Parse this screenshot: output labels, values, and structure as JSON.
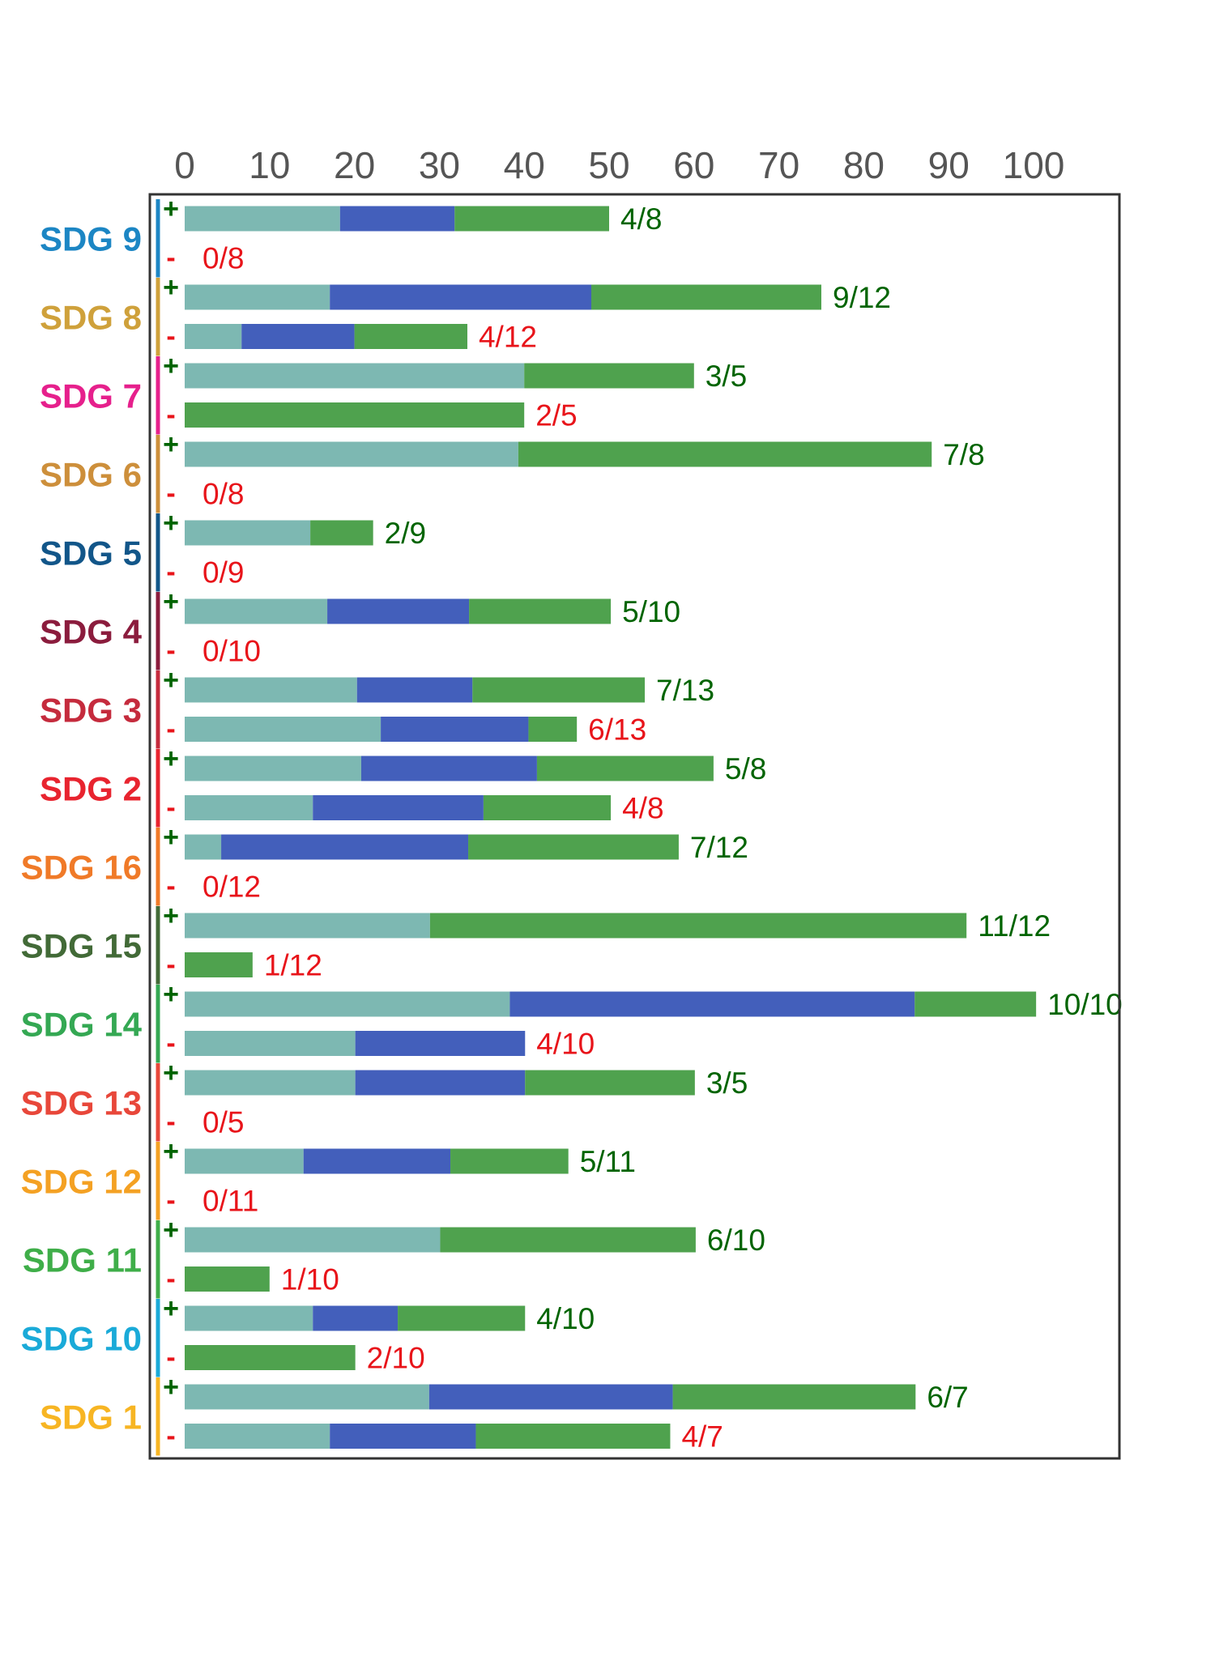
{
  "chart_data": {
    "type": "bar",
    "orientation": "horizontal",
    "stacked": true,
    "xlim": [
      0,
      110
    ],
    "xticks": [
      0,
      10,
      20,
      30,
      40,
      50,
      60,
      70,
      80,
      90,
      100
    ],
    "legend": "none",
    "grid": false,
    "segment_colors": [
      "#7db8b2",
      "#435fbb",
      "#4fa24e"
    ],
    "sign_colors": {
      "+": "#006400",
      "-": "#e8141a"
    },
    "groups": [
      {
        "label": "SDG 9",
        "color": "#1c86c4",
        "rows": [
          {
            "sign": "+",
            "segments": [
              18.3,
              13.5,
              18.2
            ],
            "ratio": "4/8"
          },
          {
            "sign": "-",
            "segments": [
              0,
              0,
              0
            ],
            "ratio": "0/8"
          }
        ]
      },
      {
        "label": "SDG 8",
        "color": "#cfa13b",
        "rows": [
          {
            "sign": "+",
            "segments": [
              17.1,
              30.8,
              27.1
            ],
            "ratio": "9/12"
          },
          {
            "sign": "-",
            "segments": [
              6.7,
              13.3,
              13.3
            ],
            "ratio": "4/12"
          }
        ]
      },
      {
        "label": "SDG 7",
        "color": "#e6208c",
        "rows": [
          {
            "sign": "+",
            "segments": [
              40,
              0,
              20
            ],
            "ratio": "3/5"
          },
          {
            "sign": "-",
            "segments": [
              0,
              0,
              40
            ],
            "ratio": "2/5"
          }
        ]
      },
      {
        "label": "SDG 6",
        "color": "#cd8f3b",
        "rows": [
          {
            "sign": "+",
            "segments": [
              39.3,
              0,
              48.7
            ],
            "ratio": "7/8"
          },
          {
            "sign": "-",
            "segments": [
              0,
              0,
              0
            ],
            "ratio": "0/8"
          }
        ]
      },
      {
        "label": "SDG 5",
        "color": "#125689",
        "rows": [
          {
            "sign": "+",
            "segments": [
              14.8,
              0,
              7.4
            ],
            "ratio": "2/9"
          },
          {
            "sign": "-",
            "segments": [
              0,
              0,
              0
            ],
            "ratio": "0/9"
          }
        ]
      },
      {
        "label": "SDG 4",
        "color": "#8b1c3d",
        "rows": [
          {
            "sign": "+",
            "segments": [
              16.8,
              16.7,
              16.7
            ],
            "ratio": "5/10"
          },
          {
            "sign": "-",
            "segments": [
              0,
              0,
              0
            ],
            "ratio": "0/10"
          }
        ]
      },
      {
        "label": "SDG 3",
        "color": "#c52b3d",
        "rows": [
          {
            "sign": "+",
            "segments": [
              20.3,
              13.6,
              20.3
            ],
            "ratio": "7/13"
          },
          {
            "sign": "-",
            "segments": [
              23.1,
              17.4,
              5.7
            ],
            "ratio": "6/13"
          }
        ]
      },
      {
        "label": "SDG 2",
        "color": "#e8242f",
        "rows": [
          {
            "sign": "+",
            "segments": [
              20.8,
              20.7,
              20.8
            ],
            "ratio": "5/8"
          },
          {
            "sign": "-",
            "segments": [
              15.1,
              20.1,
              15
            ],
            "ratio": "4/8"
          }
        ]
      },
      {
        "label": "SDG 16",
        "color": "#f07a28",
        "rows": [
          {
            "sign": "+",
            "segments": [
              4.3,
              29.1,
              24.8
            ],
            "ratio": "7/12"
          },
          {
            "sign": "-",
            "segments": [
              0,
              0,
              0
            ],
            "ratio": "0/12"
          }
        ]
      },
      {
        "label": "SDG 15",
        "color": "#426a37",
        "rows": [
          {
            "sign": "+",
            "segments": [
              28.9,
              0,
              63.2
            ],
            "ratio": "11/12"
          },
          {
            "sign": "-",
            "segments": [
              0,
              0,
              8
            ],
            "ratio": "1/12"
          }
        ]
      },
      {
        "label": "SDG 14",
        "color": "#34a853",
        "rows": [
          {
            "sign": "+",
            "segments": [
              38.3,
              47.7,
              14.3
            ],
            "ratio": "10/10"
          },
          {
            "sign": "-",
            "segments": [
              20.1,
              20,
              0
            ],
            "ratio": "4/10"
          }
        ]
      },
      {
        "label": "SDG 13",
        "color": "#e8473a",
        "rows": [
          {
            "sign": "+",
            "segments": [
              20.1,
              20,
              20
            ],
            "ratio": "3/5"
          },
          {
            "sign": "-",
            "segments": [
              0,
              0,
              0
            ],
            "ratio": "0/5"
          }
        ]
      },
      {
        "label": "SDG 12",
        "color": "#f4a123",
        "rows": [
          {
            "sign": "+",
            "segments": [
              14,
              17.3,
              13.9
            ],
            "ratio": "5/11"
          },
          {
            "sign": "-",
            "segments": [
              0,
              0,
              0
            ],
            "ratio": "0/11"
          }
        ]
      },
      {
        "label": "SDG 11",
        "color": "#3fae49",
        "rows": [
          {
            "sign": "+",
            "segments": [
              30.1,
              0,
              30.1
            ],
            "ratio": "6/10"
          },
          {
            "sign": "-",
            "segments": [
              0,
              0,
              10
            ],
            "ratio": "1/10"
          }
        ]
      },
      {
        "label": "SDG 10",
        "color": "#1aaad8",
        "rows": [
          {
            "sign": "+",
            "segments": [
              15.1,
              10,
              15
            ],
            "ratio": "4/10"
          },
          {
            "sign": "-",
            "segments": [
              0,
              0,
              20.1
            ],
            "ratio": "2/10"
          }
        ]
      },
      {
        "label": "SDG 1",
        "color": "#f7b523",
        "rows": [
          {
            "sign": "+",
            "segments": [
              28.8,
              28.7,
              28.6
            ],
            "ratio": "6/7"
          },
          {
            "sign": "-",
            "segments": [
              17.1,
              17.2,
              22.9
            ],
            "ratio": "4/7"
          }
        ]
      }
    ]
  }
}
